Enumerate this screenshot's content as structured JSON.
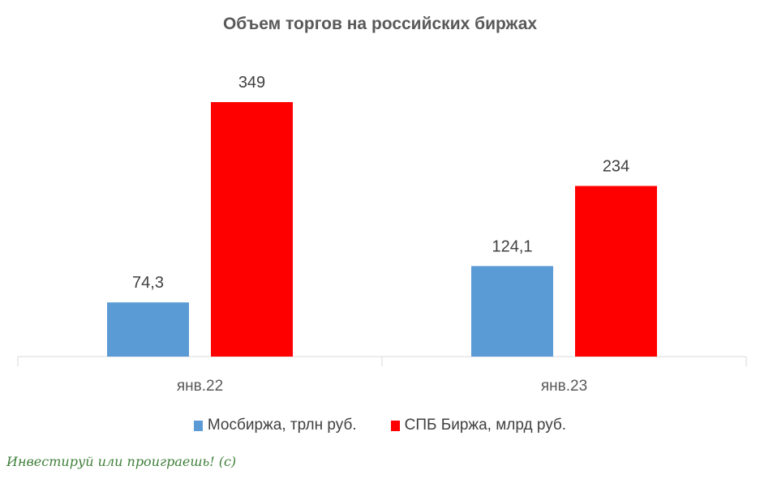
{
  "chart_data": {
    "type": "bar",
    "title": "Объем торгов на российских биржах",
    "categories": [
      "янв.22",
      "янв.23"
    ],
    "series": [
      {
        "name": "Мосбиржа, трлн руб.",
        "color": "#5b9bd5",
        "values": [
          74.3,
          124.1
        ],
        "labels": [
          "74,3",
          "124,1"
        ]
      },
      {
        "name": "СПБ Биржа, млрд руб.",
        "color": "#ff0000",
        "values": [
          349,
          234
        ],
        "labels": [
          "349",
          "234"
        ]
      }
    ],
    "ylim": [
      0,
      349
    ],
    "grid": false,
    "legend": "bottom"
  },
  "watermark": "Инвестируй или проиграешь! (с)"
}
